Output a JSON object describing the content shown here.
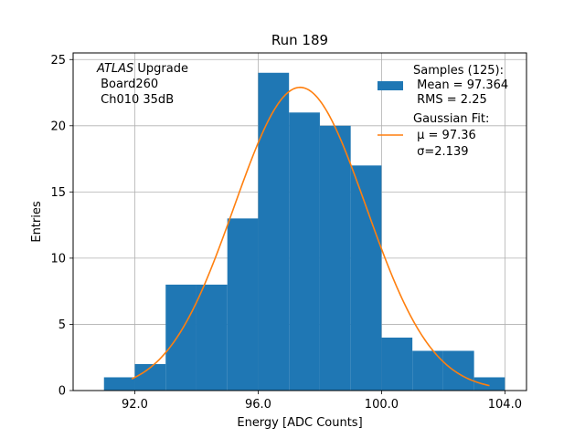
{
  "chart_data": {
    "type": "bar",
    "title": "Run 189",
    "xlabel": "Energy [ADC Counts]",
    "ylabel": "Entries",
    "xlim": [
      90.0,
      104.7
    ],
    "ylim": [
      0,
      25.5
    ],
    "x_ticks": [
      92,
      96,
      100,
      104
    ],
    "x_tick_labels": [
      "92.0",
      "96.0",
      "100.0",
      "104.0"
    ],
    "y_ticks": [
      0,
      5,
      10,
      15,
      20,
      25
    ],
    "y_tick_labels": [
      "0",
      "5",
      "10",
      "15",
      "20",
      "25"
    ],
    "grid": true,
    "histogram": {
      "name": "Samples",
      "color": "#1f77b4",
      "bins": [
        {
          "start": 91,
          "end": 92,
          "count": 1
        },
        {
          "start": 92,
          "end": 93,
          "count": 2
        },
        {
          "start": 93,
          "end": 94,
          "count": 8
        },
        {
          "start": 94,
          "end": 95,
          "count": 8
        },
        {
          "start": 95,
          "end": 96,
          "count": 13
        },
        {
          "start": 96,
          "end": 97,
          "count": 24
        },
        {
          "start": 97,
          "end": 98,
          "count": 21
        },
        {
          "start": 98,
          "end": 99,
          "count": 20
        },
        {
          "start": 99,
          "end": 100,
          "count": 17
        },
        {
          "start": 100,
          "end": 101,
          "count": 4
        },
        {
          "start": 101,
          "end": 102,
          "count": 3
        },
        {
          "start": 102,
          "end": 103,
          "count": 3
        },
        {
          "start": 103,
          "end": 104,
          "count": 1
        }
      ]
    },
    "fit": {
      "name": "Gaussian Fit",
      "color": "#ff7f0e",
      "mu": 97.36,
      "sigma": 2.139,
      "amplitude": 22.9,
      "x_range": [
        91.9,
        103.5
      ]
    },
    "legend": {
      "position": "top-right",
      "entries": [
        {
          "lines": [
            "Samples (125):",
            " Mean = 97.364",
            " RMS = 2.25"
          ]
        },
        {
          "lines": [
            "Gaussian Fit:",
            " μ = 97.36",
            " σ=2.139"
          ]
        }
      ]
    },
    "annotation": {
      "position": "top-left",
      "experiment": "ATLAS",
      "lines": [
        " Upgrade",
        " Board260",
        " Ch010 35dB"
      ]
    }
  }
}
